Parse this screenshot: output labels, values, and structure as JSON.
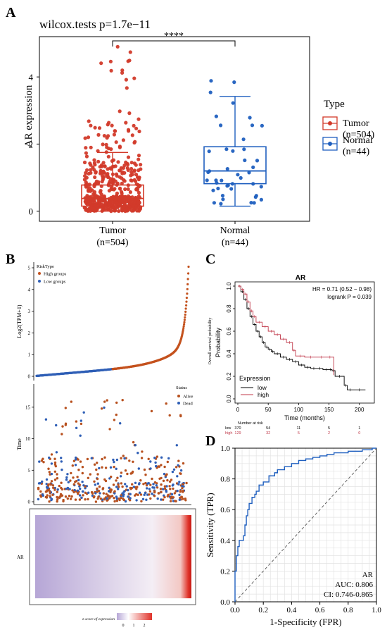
{
  "panels": {
    "a": "A",
    "b": "B",
    "c": "C",
    "d": "D"
  },
  "chart_data": [
    {
      "id": "A",
      "type": "box",
      "title": "wilcox.tests p=1.7e−11",
      "ylabel": "AR expression",
      "significance": "****",
      "ylim": [
        0,
        5.2
      ],
      "yticks": [
        0,
        2,
        4
      ],
      "categories": [
        "Tumor\n(n=504)",
        "Normal\n(n=44)"
      ],
      "legend_title": "Type",
      "legend": [
        {
          "label": "Tumor\n(n=504)",
          "color": "#d23a2a"
        },
        {
          "label": "Normal\n(n=44)",
          "color": "#1f5fbf"
        }
      ],
      "series": [
        {
          "name": "Tumor",
          "n": 504,
          "color": "#d23a2a",
          "min": 0,
          "q1": 0.15,
          "median": 0.38,
          "q3": 0.78,
          "whisker_high": 1.75,
          "max": 5.05
        },
        {
          "name": "Normal",
          "n": 44,
          "color": "#1f5fbf",
          "min": 0.15,
          "q1": 0.82,
          "median": 1.2,
          "q3": 1.92,
          "whisker_high": 3.42,
          "max": 4.05
        }
      ]
    },
    {
      "id": "B-top",
      "type": "scatter",
      "ylabel": "Log2(TPM+1)",
      "ylim": [
        0,
        5
      ],
      "yticks": [
        0,
        1,
        2,
        3,
        4,
        5
      ],
      "legend_title": "RiskType",
      "legend": [
        {
          "label": "High groups",
          "color": "#c4521e"
        },
        {
          "label": "Low groups",
          "color": "#2f5fb6"
        }
      ],
      "n_samples": 504,
      "split_index": 252,
      "max_value": 5.05
    },
    {
      "id": "B-mid",
      "type": "scatter",
      "ylabel": "Time",
      "ylim": [
        0,
        18
      ],
      "yticks": [
        0,
        5,
        10,
        15
      ],
      "legend_title": "Status",
      "legend": [
        {
          "label": "Alive",
          "color": "#b8511f"
        },
        {
          "label": "Dead",
          "color": "#2f5fb6"
        }
      ]
    },
    {
      "id": "B-bottom",
      "type": "heatmap",
      "row_label": "AR",
      "colorbar_title": "z-score of expression",
      "colorbar_ticks": [
        "0",
        "1",
        "2"
      ],
      "colors": [
        "#b6a6d6",
        "#ffffff",
        "#e0332a"
      ]
    },
    {
      "id": "C",
      "type": "line",
      "title": "AR",
      "xlabel": "Time (months)",
      "ylabel": "Probability",
      "side_label": "Overall survival probability",
      "xlim": [
        0,
        220
      ],
      "xticks": [
        0,
        50,
        100,
        150,
        200
      ],
      "ylim": [
        0,
        1
      ],
      "yticks": [
        0,
        0.2,
        0.4,
        0.6,
        0.8,
        1.0
      ],
      "annotations": [
        "HR = 0.71 (0.52 − 0.98)",
        "logrank P = 0.039"
      ],
      "legend_title": "Expression",
      "legend": [
        {
          "label": "low",
          "color": "#000000"
        },
        {
          "label": "high",
          "color": "#c0394a"
        }
      ],
      "risk_table": {
        "title": "Number at risk",
        "rows": [
          {
            "label": "low",
            "color": "#000000",
            "values": [
              "370",
              "54",
              "11",
              "5",
              "1"
            ]
          },
          {
            "label": "high",
            "color": "#c0394a",
            "values": [
              "129",
              "32",
              "5",
              "2",
              "0"
            ]
          }
        ]
      },
      "series": [
        {
          "name": "low",
          "x": [
            0,
            5,
            10,
            15,
            20,
            25,
            30,
            35,
            40,
            45,
            50,
            55,
            60,
            70,
            80,
            90,
            100,
            110,
            120,
            130,
            140,
            150,
            155,
            160,
            175,
            180,
            190,
            210
          ],
          "y": [
            1.0,
            0.95,
            0.88,
            0.8,
            0.73,
            0.66,
            0.6,
            0.55,
            0.5,
            0.46,
            0.44,
            0.42,
            0.4,
            0.37,
            0.35,
            0.33,
            0.3,
            0.28,
            0.27,
            0.27,
            0.26,
            0.26,
            0.25,
            0.2,
            0.12,
            0.08,
            0.08,
            0.08
          ]
        },
        {
          "name": "high",
          "x": [
            0,
            5,
            10,
            15,
            20,
            25,
            30,
            40,
            50,
            60,
            70,
            80,
            90,
            95,
            110,
            130,
            145,
            158
          ],
          "y": [
            1.0,
            0.97,
            0.93,
            0.86,
            0.78,
            0.73,
            0.68,
            0.64,
            0.6,
            0.57,
            0.53,
            0.5,
            0.43,
            0.38,
            0.37,
            0.37,
            0.37,
            0.21
          ]
        }
      ]
    },
    {
      "id": "D",
      "type": "line",
      "xlabel": "1-Specificity (FPR)",
      "ylabel": "Sensitivity (TPR)",
      "xlim": [
        0,
        1
      ],
      "ylim": [
        0,
        1
      ],
      "xticks": [
        0.0,
        0.2,
        0.4,
        0.6,
        0.8,
        1.0
      ],
      "yticks": [
        0.0,
        0.2,
        0.4,
        0.6,
        0.8,
        1.0
      ],
      "annotations": [
        "AR",
        "AUC: 0.806",
        "CI: 0.746-0.865"
      ],
      "series": [
        {
          "name": "ROC",
          "x": [
            0,
            0,
            0.01,
            0.01,
            0.02,
            0.03,
            0.04,
            0.06,
            0.07,
            0.08,
            0.09,
            0.1,
            0.12,
            0.14,
            0.15,
            0.17,
            0.2,
            0.24,
            0.28,
            0.3,
            0.35,
            0.4,
            0.45,
            0.5,
            0.55,
            0.6,
            0.65,
            0.7,
            0.75,
            0.8,
            0.85,
            0.9,
            0.95,
            0.97,
            1.0
          ],
          "y": [
            0,
            0.2,
            0.22,
            0.3,
            0.36,
            0.4,
            0.4,
            0.43,
            0.5,
            0.56,
            0.6,
            0.64,
            0.68,
            0.7,
            0.72,
            0.76,
            0.78,
            0.82,
            0.84,
            0.86,
            0.88,
            0.9,
            0.92,
            0.93,
            0.94,
            0.95,
            0.96,
            0.97,
            0.97,
            0.98,
            0.98,
            0.99,
            0.99,
            1.0,
            1.0
          ]
        },
        {
          "name": "reference",
          "x": [
            0,
            1
          ],
          "y": [
            0,
            1
          ]
        }
      ]
    }
  ]
}
